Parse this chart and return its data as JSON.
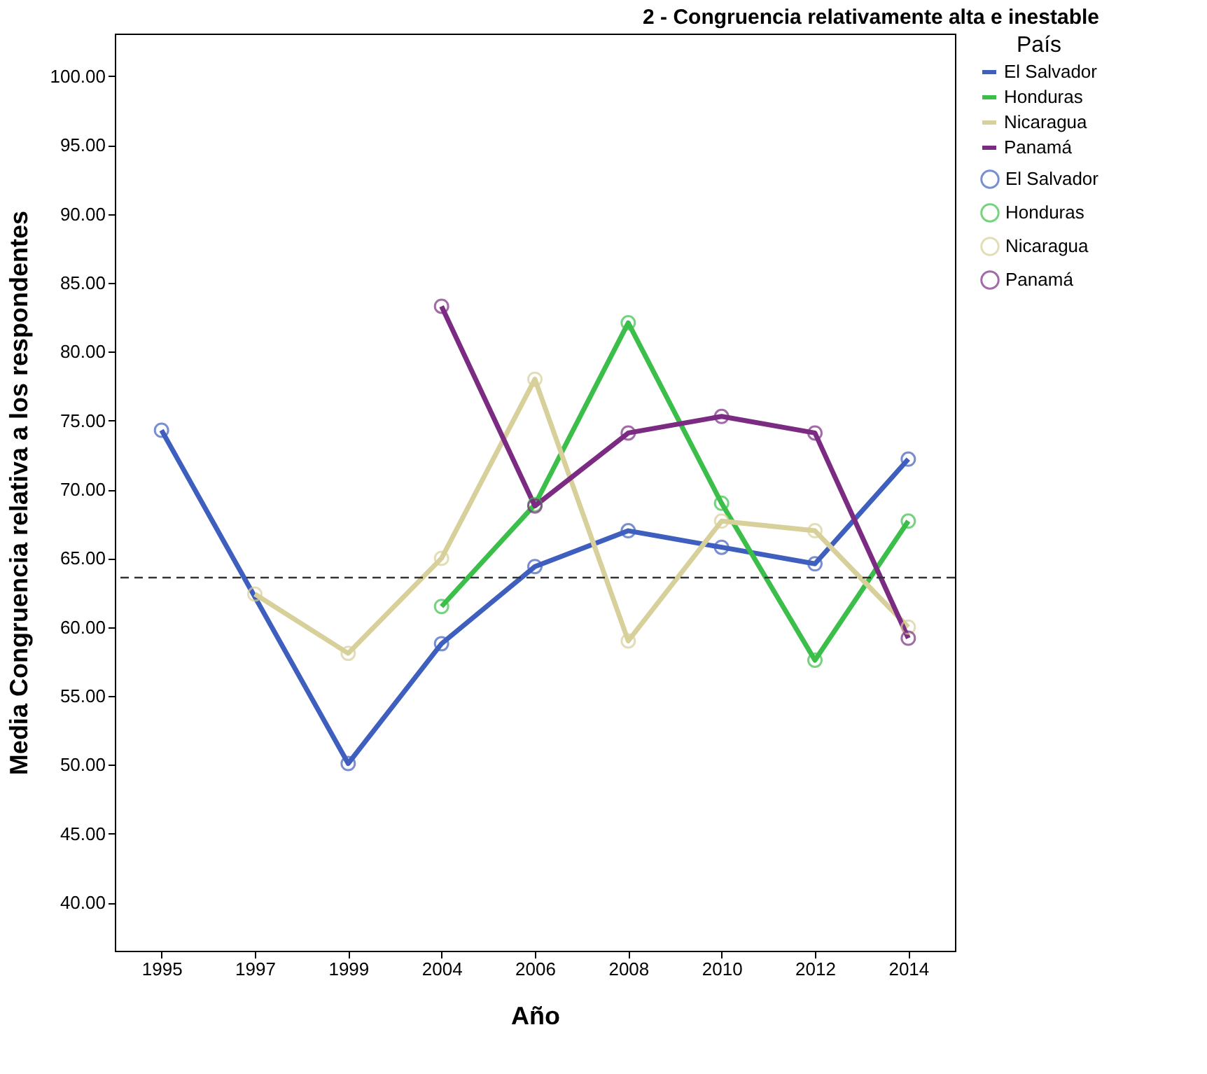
{
  "chart_data": {
    "type": "line",
    "title": "2 - Congruencia relativamente alta e inestable",
    "xlabel": "Año",
    "ylabel": "Media Congruencia relativa a los respondentes",
    "legend_title": "País",
    "categories": [
      "1995",
      "1997",
      "1999",
      "2004",
      "2006",
      "2008",
      "2010",
      "2012",
      "2014"
    ],
    "series": [
      {
        "name": "El Salvador",
        "color": "#3f5fbf",
        "values": [
          74.3,
          null,
          50.1,
          58.8,
          64.4,
          67.0,
          65.8,
          64.6,
          72.2
        ]
      },
      {
        "name": "Honduras",
        "color": "#3cbf4a",
        "values": [
          null,
          null,
          null,
          61.5,
          68.9,
          82.1,
          69.0,
          57.6,
          67.7
        ]
      },
      {
        "name": "Nicaragua",
        "color": "#d8d09a",
        "values": [
          null,
          62.4,
          58.1,
          65.0,
          78.0,
          59.0,
          67.7,
          67.0,
          60.0
        ]
      },
      {
        "name": "Panamá",
        "color": "#7b2c82",
        "values": [
          null,
          null,
          null,
          83.3,
          68.8,
          74.1,
          75.3,
          74.1,
          59.2
        ]
      }
    ],
    "ylim": [
      36.5,
      103.1
    ],
    "yticks": [
      {
        "value": 40,
        "label": "40.00"
      },
      {
        "value": 45,
        "label": "45.00"
      },
      {
        "value": 50,
        "label": "50.00"
      },
      {
        "value": 55,
        "label": "55.00"
      },
      {
        "value": 60,
        "label": "60.00"
      },
      {
        "value": 65,
        "label": "65.00"
      },
      {
        "value": 70,
        "label": "70.00"
      },
      {
        "value": 75,
        "label": "75.00"
      },
      {
        "value": 80,
        "label": "80.00"
      },
      {
        "value": 85,
        "label": "85.00"
      },
      {
        "value": 90,
        "label": "90.00"
      },
      {
        "value": 95,
        "label": "95.00"
      },
      {
        "value": 100,
        "label": "100.00"
      }
    ],
    "ref_lines": [
      {
        "axis": "y",
        "value": 63.6,
        "color": "#333333",
        "line_style": "dashed"
      }
    ],
    "marker": "circle",
    "line_style": "solid",
    "grid": false,
    "legend": "top right"
  }
}
